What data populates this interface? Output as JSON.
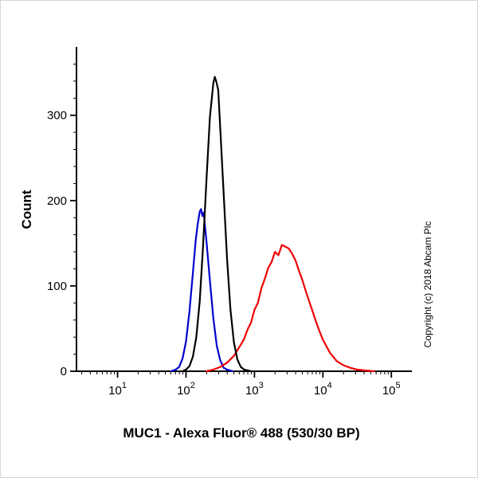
{
  "copyright": "Copyright (c) 2018 Abcam Plc",
  "chart_data": {
    "type": "line",
    "title": "",
    "xlabel": "MUC1 - Alexa Fluor® 488 (530/30 BP)",
    "ylabel": "Count",
    "x_scale": "log",
    "xlim_log10": [
      0.4,
      5.3
    ],
    "ylim": [
      0,
      380
    ],
    "x_tick_exponents": [
      1,
      2,
      3,
      4,
      5
    ],
    "y_ticks": [
      0,
      100,
      200,
      300
    ],
    "y_minor_step": 20,
    "grid": false,
    "legend": "none",
    "series": [
      {
        "name": "blue-curve",
        "color": "#0000cc",
        "points": [
          [
            1.78,
            0
          ],
          [
            1.85,
            2
          ],
          [
            1.9,
            5
          ],
          [
            1.95,
            15
          ],
          [
            2.0,
            35
          ],
          [
            2.05,
            70
          ],
          [
            2.1,
            115
          ],
          [
            2.14,
            152
          ],
          [
            2.17,
            172
          ],
          [
            2.2,
            187
          ],
          [
            2.22,
            190
          ],
          [
            2.24,
            182
          ],
          [
            2.26,
            186
          ],
          [
            2.28,
            168
          ],
          [
            2.3,
            152
          ],
          [
            2.35,
            106
          ],
          [
            2.4,
            62
          ],
          [
            2.45,
            30
          ],
          [
            2.5,
            13
          ],
          [
            2.55,
            4
          ],
          [
            2.6,
            2
          ],
          [
            2.68,
            0
          ]
        ]
      },
      {
        "name": "red-curve",
        "color": "#ee0000",
        "points": [
          [
            2.3,
            0
          ],
          [
            2.4,
            2
          ],
          [
            2.5,
            5
          ],
          [
            2.6,
            10
          ],
          [
            2.7,
            18
          ],
          [
            2.8,
            31
          ],
          [
            2.85,
            38
          ],
          [
            2.9,
            49
          ],
          [
            2.95,
            57
          ],
          [
            3.0,
            72
          ],
          [
            3.05,
            80
          ],
          [
            3.1,
            97
          ],
          [
            3.15,
            108
          ],
          [
            3.2,
            121
          ],
          [
            3.25,
            128
          ],
          [
            3.3,
            140
          ],
          [
            3.35,
            136
          ],
          [
            3.4,
            148
          ],
          [
            3.45,
            146
          ],
          [
            3.5,
            144
          ],
          [
            3.55,
            138
          ],
          [
            3.6,
            130
          ],
          [
            3.65,
            118
          ],
          [
            3.7,
            107
          ],
          [
            3.75,
            94
          ],
          [
            3.8,
            82
          ],
          [
            3.85,
            70
          ],
          [
            3.9,
            58
          ],
          [
            3.95,
            47
          ],
          [
            4.0,
            37
          ],
          [
            4.1,
            22
          ],
          [
            4.2,
            12
          ],
          [
            4.3,
            7
          ],
          [
            4.4,
            4
          ],
          [
            4.5,
            2
          ],
          [
            4.6,
            1
          ],
          [
            4.75,
            0
          ]
        ]
      },
      {
        "name": "black-curve",
        "color": "#000000",
        "points": [
          [
            1.95,
            0
          ],
          [
            2.0,
            2
          ],
          [
            2.05,
            6
          ],
          [
            2.1,
            17
          ],
          [
            2.15,
            40
          ],
          [
            2.2,
            82
          ],
          [
            2.25,
            147
          ],
          [
            2.3,
            225
          ],
          [
            2.35,
            298
          ],
          [
            2.38,
            322
          ],
          [
            2.4,
            338
          ],
          [
            2.42,
            345
          ],
          [
            2.44,
            340
          ],
          [
            2.47,
            330
          ],
          [
            2.5,
            286
          ],
          [
            2.55,
            209
          ],
          [
            2.6,
            132
          ],
          [
            2.65,
            72
          ],
          [
            2.7,
            34
          ],
          [
            2.75,
            14
          ],
          [
            2.8,
            5
          ],
          [
            2.85,
            2
          ],
          [
            2.9,
            1
          ],
          [
            2.95,
            0
          ]
        ]
      }
    ]
  }
}
